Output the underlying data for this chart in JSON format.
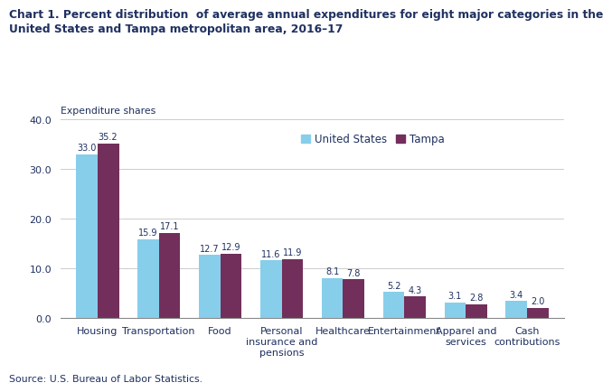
{
  "title_line1": "Chart 1. Percent distribution  of average annual expenditures for eight major categories in the",
  "title_line2": "United States and Tampa metropolitan area, 2016–17",
  "ylabel": "Expenditure shares",
  "source": "Source: U.S. Bureau of Labor Statistics.",
  "categories": [
    "Housing",
    "Transportation",
    "Food",
    "Personal\ninsurance and\npensions",
    "Healthcare",
    "Entertainment",
    "Apparel and\nservices",
    "Cash\ncontributions"
  ],
  "us_values": [
    33.0,
    15.9,
    12.7,
    11.6,
    8.1,
    5.2,
    3.1,
    3.4
  ],
  "tampa_values": [
    35.2,
    17.1,
    12.9,
    11.9,
    7.8,
    4.3,
    2.8,
    2.0
  ],
  "us_color": "#87CEEB",
  "tampa_color": "#722F5B",
  "ylim": [
    0,
    40.0
  ],
  "yticks": [
    0.0,
    10.0,
    20.0,
    30.0,
    40.0
  ],
  "legend_us": "United States",
  "legend_tampa": "Tampa",
  "bar_width": 0.35,
  "title_color": "#1F3060",
  "value_fontsize": 7.0,
  "label_fontsize": 8.0,
  "title_fontsize": 8.8,
  "ylabel_fontsize": 7.8,
  "legend_fontsize": 8.5,
  "source_fontsize": 7.8
}
